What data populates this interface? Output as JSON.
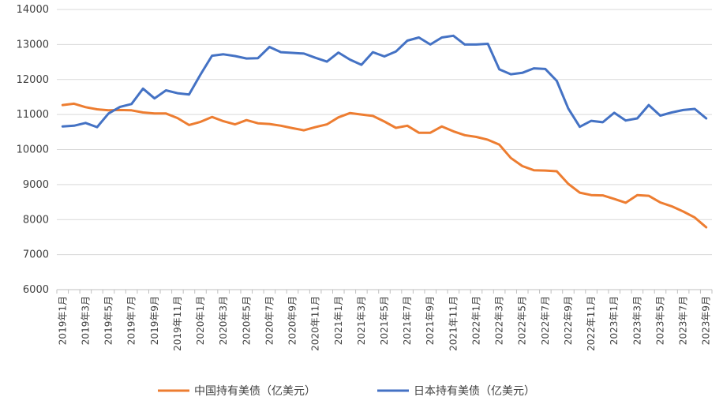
{
  "chart_data": {
    "type": "line",
    "ylim": [
      6000,
      14000
    ],
    "yticks": [
      6000,
      7000,
      8000,
      9000,
      10000,
      11000,
      12000,
      13000,
      14000
    ],
    "grid": true,
    "legend": "bottom-center",
    "x": [
      "2019年1月",
      "2019年2月",
      "2019年3月",
      "2019年4月",
      "2019年5月",
      "2019年6月",
      "2019年7月",
      "2019年8月",
      "2019年9月",
      "2019年10月",
      "2019年11月",
      "2019年12月",
      "2020年1月",
      "2020年2月",
      "2020年3月",
      "2020年4月",
      "2020年5月",
      "2020年6月",
      "2020年7月",
      "2020年8月",
      "2020年9月",
      "2020年10月",
      "2020年11月",
      "2020年12月",
      "2021年1月",
      "2021年2月",
      "2021年3月",
      "2021年4月",
      "2021年5月",
      "2021年6月",
      "2021年7月",
      "2021年8月",
      "2021年9月",
      "2021年10月",
      "2021年11月",
      "2021年12月",
      "2022年1月",
      "2022年2月",
      "2022年3月",
      "2022年4月",
      "2022年5月",
      "2022年6月",
      "2022年7月",
      "2022年8月",
      "2022年9月",
      "2022年10月",
      "2022年11月",
      "2022年12月",
      "2023年1月",
      "2023年2月",
      "2023年3月",
      "2023年4月",
      "2023年5月",
      "2023年6月",
      "2023年7月",
      "2023年8月",
      "2023年9月"
    ],
    "xtick_labels": [
      "2019年1月",
      "2019年3月",
      "2019年5月",
      "2019年7月",
      "2019年9月",
      "2019年11月",
      "2020年1月",
      "2020年3月",
      "2020年5月",
      "2020年7月",
      "2020年9月",
      "2020年11月",
      "2021年1月",
      "2021年3月",
      "2021年5月",
      "2021年7月",
      "2021年9月",
      "2021年11月",
      "2022年1月",
      "2022年3月",
      "2022年5月",
      "2022年7月",
      "2022年9月",
      "2022年11月",
      "2023年1月",
      "2023年3月",
      "2023年5月",
      "2023年7月",
      "2023年9月"
    ],
    "series": [
      {
        "name": "中国持有美债（亿美元）",
        "color": "#ed7d31",
        "values": [
          11270,
          11310,
          11210,
          11150,
          11120,
          11130,
          11120,
          11060,
          11030,
          11030,
          10900,
          10700,
          10790,
          10930,
          10810,
          10720,
          10840,
          10750,
          10730,
          10680,
          10610,
          10550,
          10640,
          10720,
          10920,
          11040,
          11000,
          10960,
          10800,
          10620,
          10680,
          10480,
          10480,
          10660,
          10520,
          10410,
          10360,
          10280,
          10140,
          9760,
          9530,
          9410,
          9400,
          9380,
          9020,
          8770,
          8700,
          8690,
          8590,
          8480,
          8700,
          8680,
          8490,
          8380,
          8230,
          8060,
          7780
        ]
      },
      {
        "name": "日本持有美债（亿美元）",
        "color": "#4472c4",
        "values": [
          10660,
          10680,
          10760,
          10640,
          11030,
          11220,
          11300,
          11740,
          11460,
          11690,
          11610,
          11570,
          12140,
          12680,
          12720,
          12670,
          12600,
          12610,
          12930,
          12780,
          12760,
          12740,
          12620,
          12510,
          12770,
          12570,
          12420,
          12780,
          12660,
          12800,
          13110,
          13200,
          13000,
          13200,
          13250,
          13000,
          13000,
          13020,
          12290,
          12150,
          12190,
          12320,
          12300,
          11960,
          11170,
          10650,
          10820,
          10780,
          11050,
          10830,
          10890,
          11270,
          10970,
          11060,
          11130,
          11160,
          10890
        ]
      }
    ]
  }
}
